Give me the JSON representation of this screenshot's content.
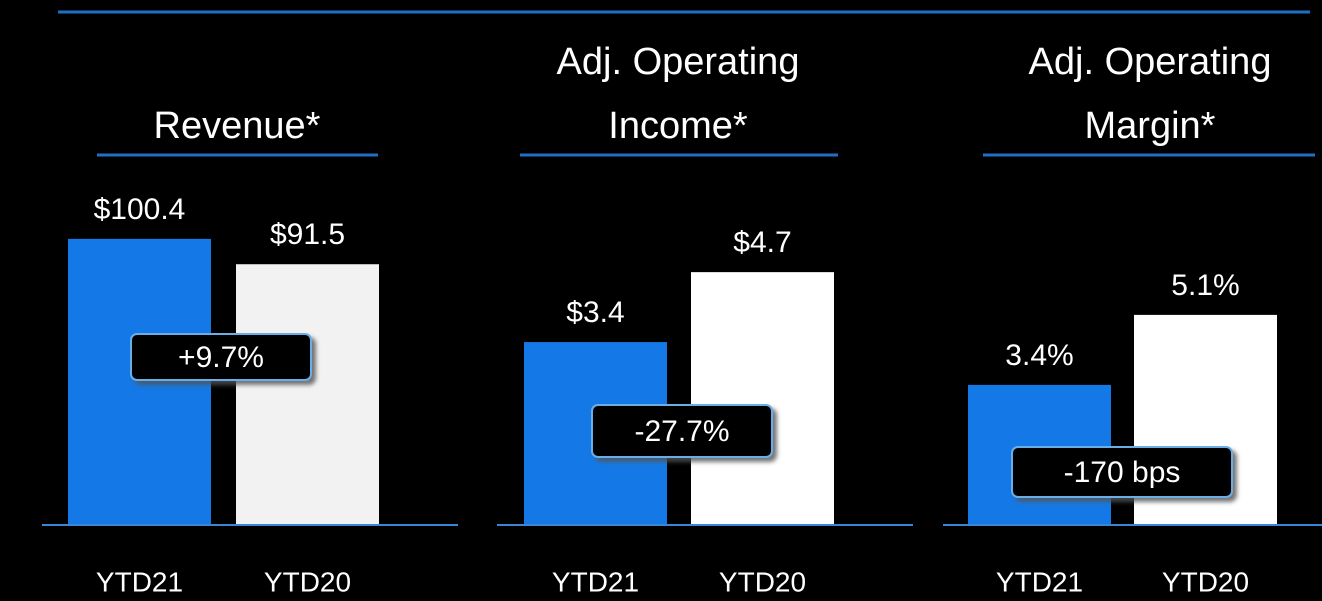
{
  "chart_data": [
    {
      "type": "bar",
      "title": [
        "Revenue*"
      ],
      "categories": [
        "YTD21",
        "YTD20"
      ],
      "values": [
        100.4,
        91.5
      ],
      "value_labels": [
        "$100.4",
        "$91.5"
      ],
      "colors": [
        "#1479e6",
        "#f2f2f2"
      ],
      "annotation": "+9.7%"
    },
    {
      "type": "bar",
      "title": [
        "Adj. Operating",
        "Income*"
      ],
      "categories": [
        "YTD21",
        "YTD20"
      ],
      "values": [
        3.4,
        4.7
      ],
      "value_labels": [
        "$3.4",
        "$4.7"
      ],
      "colors": [
        "#1479e6",
        "#ffffff"
      ],
      "annotation": "-27.7%"
    },
    {
      "type": "bar",
      "title": [
        "Adj. Operating",
        "Margin*"
      ],
      "categories": [
        "YTD21",
        "YTD20"
      ],
      "values": [
        3.4,
        5.1
      ],
      "value_labels": [
        "3.4%",
        "5.1%"
      ],
      "colors": [
        "#1479e6",
        "#ffffff"
      ],
      "annotation": "-170 bps"
    }
  ]
}
